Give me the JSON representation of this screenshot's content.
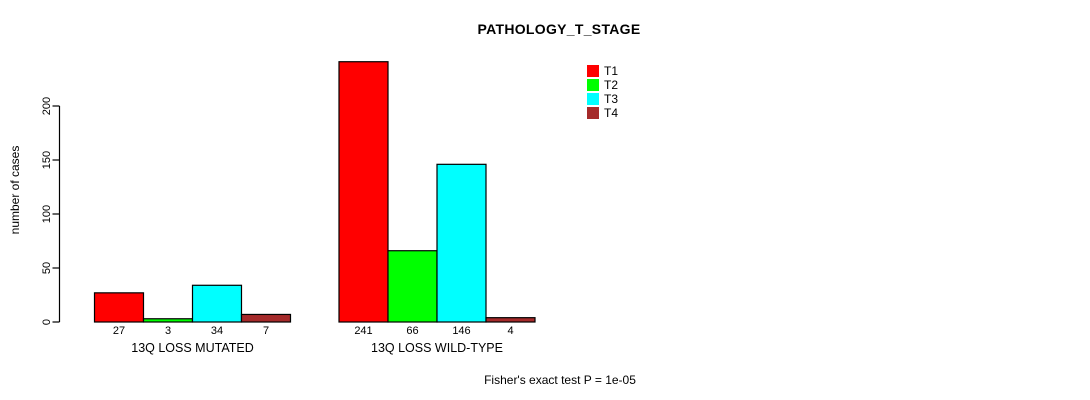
{
  "chart_data": {
    "type": "bar",
    "title": "PATHOLOGY_T_STAGE",
    "ylabel": "number of cases",
    "xlabel": "",
    "footnote": "Fisher's exact test P = 1e-05",
    "categories": [
      "13Q LOSS MUTATED",
      "13Q LOSS WILD-TYPE"
    ],
    "series": [
      {
        "name": "T1",
        "color": "#ff0000",
        "values": [
          27,
          241
        ]
      },
      {
        "name": "T2",
        "color": "#00ff00",
        "values": [
          3,
          66
        ]
      },
      {
        "name": "T3",
        "color": "#00ffff",
        "values": [
          34,
          146
        ]
      },
      {
        "name": "T4",
        "color": "#a52a2a",
        "values": [
          7,
          4
        ]
      }
    ],
    "bar_value_labels": [
      [
        "27",
        "3",
        "34",
        "7"
      ],
      [
        "241",
        "66",
        "146",
        "4"
      ]
    ],
    "yticks": [
      0,
      50,
      100,
      150,
      200
    ],
    "ylim": [
      0,
      241
    ],
    "grid": false,
    "legend_position": "top-right",
    "bar_border_color": "#000000",
    "axis_color": "#000000",
    "text_color": "#000000",
    "background_color": "#ffffff"
  }
}
